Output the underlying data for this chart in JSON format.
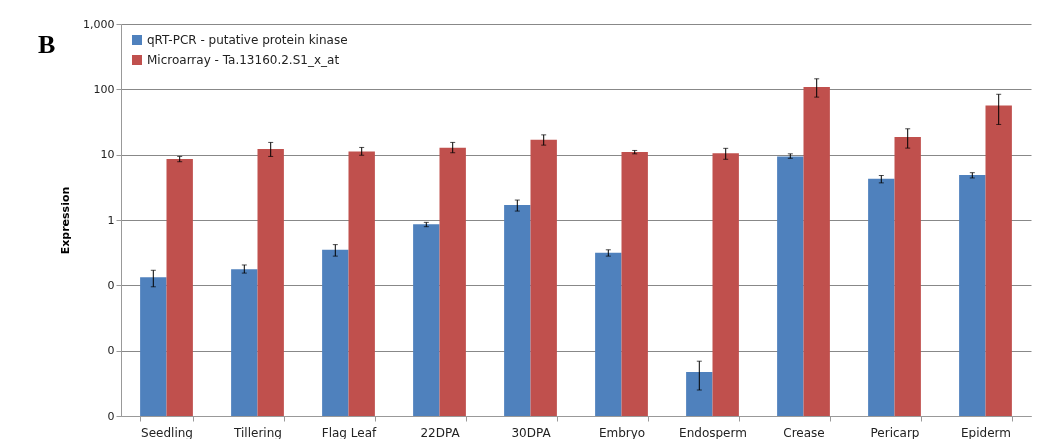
{
  "chart_data": {
    "type": "bar",
    "ylabel": "Expression",
    "annotations": [
      "B"
    ],
    "categories": [
      "Seedling",
      "Tillering",
      "Flag Leaf",
      "22DPA",
      "30DPA",
      "Embryo",
      "Endosperm",
      "Crease",
      "Pericarp",
      "Epiderm"
    ],
    "series": [
      {
        "name": "qRT-PCR - putative protein kinase",
        "color": "#4f81bd",
        "values": [
          0.133,
          0.176,
          0.352,
          0.86,
          1.7,
          0.316,
          0.0047,
          9.4,
          4.29,
          4.88
        ],
        "errors": [
          [
            0.095,
            0.17
          ],
          [
            0.154,
            0.205
          ],
          [
            0.28,
            0.42
          ],
          [
            0.79,
            0.92
          ],
          [
            1.37,
            2.02
          ],
          [
            0.28,
            0.35
          ],
          [
            0.0025,
            0.0069
          ],
          [
            8.8,
            10.3
          ],
          [
            3.7,
            4.8
          ],
          [
            4.4,
            5.3
          ]
        ]
      },
      {
        "name": "Microarray - Ta.13160.2.S1_x_at",
        "color": "#c0504d",
        "values": [
          8.57,
          12.2,
          11.2,
          12.8,
          16.9,
          11.0,
          10.5,
          109,
          18.6,
          56.6
        ],
        "errors": [
          [
            7.8,
            9.4
          ],
          [
            9.4,
            15.4
          ],
          [
            9.8,
            12.9
          ],
          [
            10.7,
            15.4
          ],
          [
            14.0,
            20.1
          ],
          [
            10.3,
            11.6
          ],
          [
            8.5,
            12.5
          ],
          [
            76,
            145
          ],
          [
            12.6,
            24.9
          ],
          [
            29,
            84
          ]
        ]
      }
    ],
    "log": true,
    "ylim": [
      0.001,
      1000
    ],
    "yticks": [
      {
        "value": 0.001,
        "label": "0"
      },
      {
        "value": 0.01,
        "label": "0"
      },
      {
        "value": 0.1,
        "label": "0"
      },
      1,
      10,
      100,
      {
        "value": 1000,
        "label": "1,000"
      }
    ],
    "grid": "y",
    "legend": "top left"
  }
}
